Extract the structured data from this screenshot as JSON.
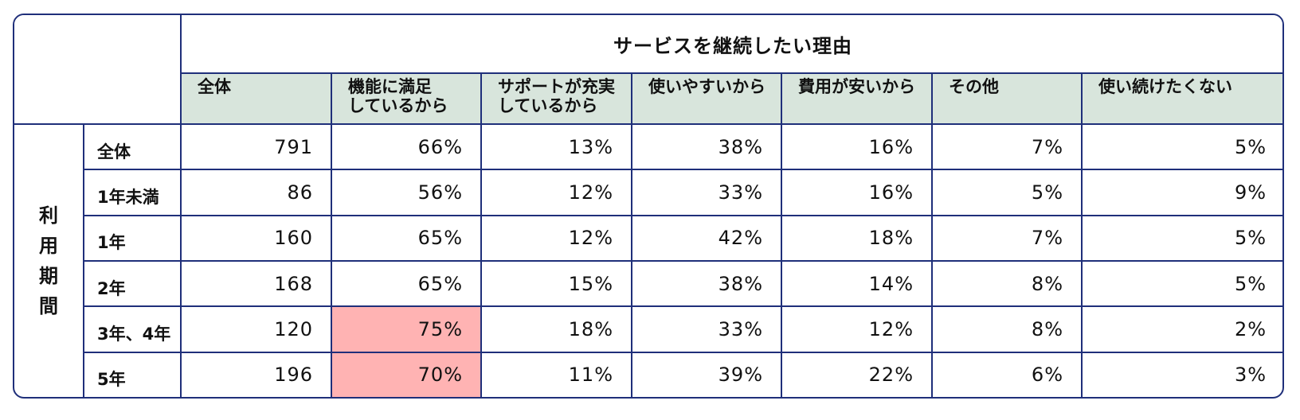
{
  "chart_data": {
    "type": "table",
    "title": "サービスを継続したい理由",
    "row_group_label": "利用期間",
    "columns": [
      "全体",
      "機能に満足\nしているから",
      "サポートが充実\nしているから",
      "使いやすいから",
      "費用が安いから",
      "その他",
      "使い続けたくない"
    ],
    "rows": [
      {
        "label": "全体",
        "values": [
          "791",
          "66%",
          "13%",
          "38%",
          "16%",
          "7%",
          "5%"
        ]
      },
      {
        "label": "1年未満",
        "values": [
          "86",
          "56%",
          "12%",
          "33%",
          "16%",
          "5%",
          "9%"
        ]
      },
      {
        "label": "1年",
        "values": [
          "160",
          "65%",
          "12%",
          "42%",
          "18%",
          "7%",
          "5%"
        ]
      },
      {
        "label": "2年",
        "values": [
          "168",
          "65%",
          "15%",
          "38%",
          "14%",
          "8%",
          "5%"
        ]
      },
      {
        "label": "3年、4年",
        "values": [
          "120",
          "75%",
          "18%",
          "33%",
          "12%",
          "8%",
          "2%"
        ]
      },
      {
        "label": "5年",
        "values": [
          "196",
          "70%",
          "11%",
          "39%",
          "22%",
          "6%",
          "3%"
        ]
      }
    ],
    "highlighted_cells": [
      {
        "row": 4,
        "col": 1
      },
      {
        "row": 5,
        "col": 1
      }
    ],
    "colors": {
      "border": "#1f2f7a",
      "header_fill": "#d8e5dc",
      "highlight_fill": "#ffb3b3"
    }
  }
}
